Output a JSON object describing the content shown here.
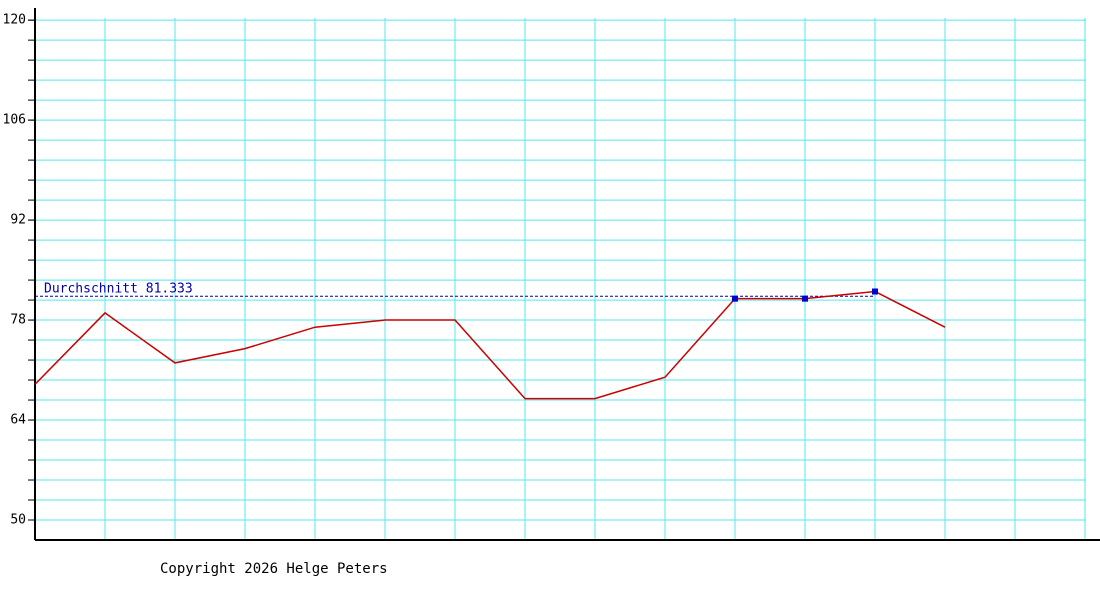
{
  "chart_data": {
    "type": "line",
    "series": [
      {
        "color": "#cc0000",
        "values": [
          69,
          79,
          72,
          74,
          77,
          78,
          78,
          67,
          67,
          70,
          81,
          81,
          82,
          77
        ]
      }
    ],
    "highlight": {
      "indices": [
        10,
        11,
        12
      ],
      "color": "#0000cc"
    },
    "average": {
      "label": "Durchschnitt",
      "value": 81.333,
      "color": "#0000aa"
    },
    "ylim": [
      47.2,
      121.7
    ],
    "yticks": [
      50,
      64,
      78,
      92,
      106,
      120
    ],
    "minor_step": 2.8,
    "grid": true,
    "grid_color": "#55e8ee",
    "footer": "Copyright 2026 Helge Peters"
  }
}
